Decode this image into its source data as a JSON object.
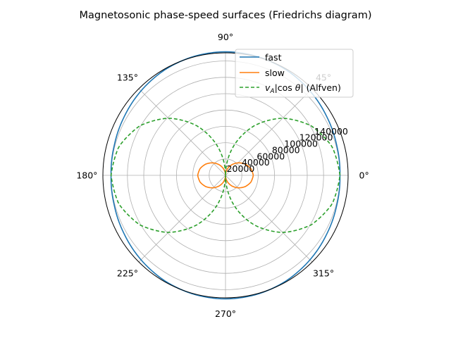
{
  "chart_data": {
    "type": "line",
    "projection": "polar",
    "title": "Magnetosonic phase-speed surfaces (Friedrichs diagram)",
    "angle_unit": "degrees",
    "angle_ticks": [
      "0°",
      "45°",
      "90°",
      "135°",
      "180°",
      "225°",
      "270°",
      "315°"
    ],
    "angle_tick_values": [
      0,
      45,
      90,
      135,
      180,
      225,
      270,
      315
    ],
    "radial_ticks": [
      "20000",
      "40000",
      "60000",
      "80000",
      "100000",
      "120000",
      "140000"
    ],
    "radial_tick_values": [
      20000,
      40000,
      60000,
      80000,
      100000,
      120000,
      140000
    ],
    "rlim": [
      0,
      150000
    ],
    "grid": true,
    "legend_position": "upper-right",
    "colors": {
      "fast": "#1f77b4",
      "slow": "#ff7f0e",
      "alfven": "#2ca02c"
    },
    "series": [
      {
        "name": "fast",
        "style": "solid",
        "theta_deg": [
          0,
          15,
          30,
          45,
          60,
          75,
          90,
          105,
          120,
          135,
          150,
          165,
          180,
          195,
          210,
          225,
          240,
          255,
          270,
          285,
          300,
          315,
          330,
          345,
          360
        ],
        "r": [
          140000,
          140900,
          143200,
          146200,
          149000,
          150700,
          151300,
          150700,
          149000,
          146200,
          143200,
          140900,
          140000,
          140900,
          143200,
          146200,
          149000,
          150700,
          151300,
          150700,
          149000,
          146200,
          143200,
          140900,
          140000
        ]
      },
      {
        "name": "slow",
        "style": "solid",
        "theta_deg": [
          0,
          15,
          30,
          45,
          60,
          75,
          90,
          105,
          120,
          135,
          150,
          165,
          180,
          195,
          210,
          225,
          240,
          255,
          270,
          285,
          300,
          315,
          330,
          345,
          360
        ],
        "r": [
          34000,
          32200,
          27700,
          21600,
          14700,
          7400,
          0,
          7400,
          14700,
          21600,
          27700,
          32200,
          34000,
          32200,
          27700,
          21600,
          14700,
          7400,
          0,
          7400,
          14700,
          21600,
          27700,
          32200,
          34000
        ]
      },
      {
        "name": "$v_A|\\cos\\theta|$ (Alfven)",
        "style": "dashed",
        "theta_deg": [
          0,
          15,
          30,
          45,
          60,
          75,
          90,
          105,
          120,
          135,
          150,
          165,
          180,
          195,
          210,
          225,
          240,
          255,
          270,
          285,
          300,
          315,
          330,
          345,
          360
        ],
        "r": [
          140000,
          135200,
          121200,
          99000,
          70000,
          36200,
          0,
          36200,
          70000,
          99000,
          121200,
          135200,
          140000,
          135200,
          121200,
          99000,
          70000,
          36200,
          0,
          36200,
          70000,
          99000,
          121200,
          135200,
          140000
        ]
      }
    ]
  },
  "legend": {
    "entries": [
      {
        "key": "fast",
        "label": "fast"
      },
      {
        "key": "slow",
        "label": "slow"
      },
      {
        "key": "alfven",
        "label_prefix": "v",
        "label_sub": "A",
        "label_mid": "|cos ",
        "label_theta": "θ",
        "label_suffix": "| (Alfven)"
      }
    ]
  }
}
